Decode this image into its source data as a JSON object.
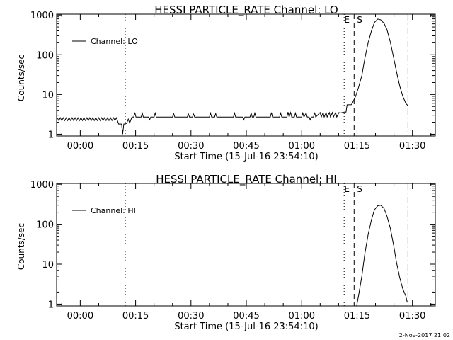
{
  "chart_data": [
    {
      "type": "line",
      "title": "HESSI PARTICLE_RATE Channel: LO",
      "xlabel": "Start Time (15-Jul-16 23:54:10)",
      "ylabel": "Counts/sec",
      "y_scale": "log",
      "ylim": [
        0.9,
        1050
      ],
      "y_ticks": [
        1,
        10,
        100,
        1000
      ],
      "y_tick_labels": [
        "1",
        "10",
        "100",
        "1000"
      ],
      "x_unit": "minutes after 00:00",
      "xlim": [
        -6.4,
        96.2
      ],
      "x_ticks": [
        0,
        15,
        30,
        45,
        60,
        75,
        90
      ],
      "x_tick_labels": [
        "00:00",
        "00:15",
        "00:30",
        "00:45",
        "01:00",
        "01:15",
        "01:30"
      ],
      "legend": {
        "label": "Channel: LO",
        "position": "top-left"
      },
      "vlines": [
        {
          "x": 12.2,
          "style": "dotted",
          "label": ""
        },
        {
          "x": 71.5,
          "style": "dotted",
          "label": "E"
        },
        {
          "x": 74.2,
          "style": "dashed",
          "label": "S"
        },
        {
          "x": 88.8,
          "style": "dashdot",
          "label": ""
        }
      ],
      "series": [
        {
          "name": "Channel: LO",
          "points": [
            [
              -6.2,
              2.6
            ],
            [
              -5.8,
              2.2
            ],
            [
              -5.4,
              2.6
            ],
            [
              -5.0,
              2.2
            ],
            [
              -4.6,
              2.6
            ],
            [
              -4.2,
              2.2
            ],
            [
              -3.8,
              2.6
            ],
            [
              -3.4,
              2.2
            ],
            [
              -3.0,
              2.6
            ],
            [
              -2.6,
              2.2
            ],
            [
              -2.2,
              2.6
            ],
            [
              -1.8,
              2.2
            ],
            [
              -1.4,
              2.6
            ],
            [
              -1.0,
              2.2
            ],
            [
              -0.6,
              2.6
            ],
            [
              -0.2,
              2.2
            ],
            [
              0.2,
              2.6
            ],
            [
              0.6,
              2.2
            ],
            [
              1.0,
              2.6
            ],
            [
              1.4,
              2.2
            ],
            [
              1.8,
              2.6
            ],
            [
              2.2,
              2.2
            ],
            [
              2.6,
              2.6
            ],
            [
              3.0,
              2.2
            ],
            [
              3.4,
              2.6
            ],
            [
              3.8,
              2.2
            ],
            [
              4.2,
              2.6
            ],
            [
              4.6,
              2.2
            ],
            [
              5.0,
              2.6
            ],
            [
              5.4,
              2.2
            ],
            [
              5.8,
              2.6
            ],
            [
              6.2,
              2.2
            ],
            [
              6.6,
              2.6
            ],
            [
              7.0,
              2.2
            ],
            [
              7.4,
              2.6
            ],
            [
              7.8,
              2.2
            ],
            [
              8.2,
              2.6
            ],
            [
              8.6,
              2.2
            ],
            [
              9.0,
              2.6
            ],
            [
              9.4,
              2.2
            ],
            [
              9.8,
              2.6
            ],
            [
              10.4,
              1.8
            ],
            [
              11.2,
              1.8
            ],
            [
              11.5,
              1.0
            ],
            [
              11.8,
              1.8
            ],
            [
              12.2,
              1.8
            ],
            [
              12.6,
              1.9
            ],
            [
              13.0,
              2.4
            ],
            [
              13.4,
              1.9
            ],
            [
              13.8,
              2.4
            ],
            [
              14.0,
              2.7
            ],
            [
              14.5,
              2.7
            ],
            [
              14.8,
              3.5
            ],
            [
              15.1,
              2.7
            ],
            [
              16.0,
              2.7
            ],
            [
              16.5,
              2.7
            ],
            [
              16.8,
              3.4
            ],
            [
              17.1,
              2.7
            ],
            [
              18.5,
              2.7
            ],
            [
              18.8,
              2.3
            ],
            [
              19.1,
              2.7
            ],
            [
              20.0,
              2.7
            ],
            [
              20.3,
              3.4
            ],
            [
              20.6,
              2.7
            ],
            [
              23.0,
              2.7
            ],
            [
              25.0,
              2.7
            ],
            [
              25.3,
              3.3
            ],
            [
              25.6,
              2.7
            ],
            [
              29.0,
              2.7
            ],
            [
              29.3,
              3.2
            ],
            [
              29.6,
              2.7
            ],
            [
              30.4,
              2.7
            ],
            [
              30.7,
              3.2
            ],
            [
              31.0,
              2.7
            ],
            [
              34.0,
              2.7
            ],
            [
              35.0,
              2.7
            ],
            [
              35.3,
              3.4
            ],
            [
              35.6,
              2.7
            ],
            [
              36.4,
              2.7
            ],
            [
              36.7,
              3.3
            ],
            [
              37.0,
              2.7
            ],
            [
              41.0,
              2.7
            ],
            [
              41.5,
              2.7
            ],
            [
              41.8,
              3.4
            ],
            [
              42.1,
              2.7
            ],
            [
              44.0,
              2.7
            ],
            [
              44.3,
              2.3
            ],
            [
              44.6,
              2.7
            ],
            [
              46.0,
              2.7
            ],
            [
              46.3,
              3.4
            ],
            [
              46.6,
              2.7
            ],
            [
              47.0,
              2.7
            ],
            [
              47.3,
              3.4
            ],
            [
              47.6,
              2.7
            ],
            [
              51.0,
              2.7
            ],
            [
              51.5,
              2.7
            ],
            [
              51.8,
              3.5
            ],
            [
              52.1,
              2.7
            ],
            [
              54.0,
              2.7
            ],
            [
              54.3,
              3.4
            ],
            [
              54.6,
              2.7
            ],
            [
              56.0,
              2.7
            ],
            [
              56.3,
              3.6
            ],
            [
              56.6,
              2.7
            ],
            [
              57.0,
              3.5
            ],
            [
              57.3,
              2.7
            ],
            [
              58.0,
              2.7
            ],
            [
              58.3,
              3.4
            ],
            [
              58.6,
              2.7
            ],
            [
              60.0,
              2.7
            ],
            [
              60.3,
              3.4
            ],
            [
              60.6,
              2.7
            ],
            [
              61.2,
              3.4
            ],
            [
              61.5,
              2.7
            ],
            [
              62.0,
              2.7
            ],
            [
              62.3,
              2.3
            ],
            [
              62.6,
              2.7
            ],
            [
              63.2,
              2.7
            ],
            [
              63.5,
              3.5
            ],
            [
              63.8,
              2.7
            ],
            [
              65.0,
              3.5
            ],
            [
              65.3,
              2.7
            ],
            [
              65.8,
              3.5
            ],
            [
              66.1,
              2.7
            ],
            [
              66.6,
              3.5
            ],
            [
              66.9,
              2.7
            ],
            [
              67.5,
              3.5
            ],
            [
              67.8,
              2.7
            ],
            [
              68.3,
              3.5
            ],
            [
              68.6,
              2.7
            ],
            [
              69.2,
              3.5
            ],
            [
              69.5,
              2.7
            ],
            [
              70.1,
              3.5
            ],
            [
              70.4,
              3.4
            ],
            [
              71.5,
              3.6
            ],
            [
              72.0,
              3.6
            ],
            [
              72.3,
              5.5
            ],
            [
              73.4,
              5.5
            ],
            [
              73.7,
              6.0
            ],
            [
              74.6,
              9.0
            ],
            [
              75.4,
              15
            ],
            [
              76.3,
              30
            ],
            [
              77.1,
              80
            ],
            [
              78.0,
              200
            ],
            [
              78.9,
              400
            ],
            [
              79.7,
              650
            ],
            [
              80.6,
              790
            ],
            [
              81.4,
              760
            ],
            [
              82.3,
              620
            ],
            [
              83.1,
              430
            ],
            [
              84.0,
              210
            ],
            [
              84.9,
              85
            ],
            [
              85.7,
              37
            ],
            [
              86.6,
              16
            ],
            [
              87.4,
              9
            ],
            [
              88.2,
              6
            ],
            [
              88.8,
              5.2
            ]
          ]
        }
      ]
    },
    {
      "type": "line",
      "title": "HESSI PARTICLE_RATE Channel: HI",
      "xlabel": "Start Time (15-Jul-16 23:54:10)",
      "ylabel": "Counts/sec",
      "y_scale": "log",
      "ylim": [
        0.9,
        1050
      ],
      "y_ticks": [
        1,
        10,
        100,
        1000
      ],
      "y_tick_labels": [
        "1",
        "10",
        "100",
        "1000"
      ],
      "x_unit": "minutes after 00:00",
      "xlim": [
        -6.4,
        96.2
      ],
      "x_ticks": [
        0,
        15,
        30,
        45,
        60,
        75,
        90
      ],
      "x_tick_labels": [
        "00:00",
        "00:15",
        "00:30",
        "00:45",
        "01:00",
        "01:15",
        "01:30"
      ],
      "legend": {
        "label": "Channel: HI",
        "position": "top-left"
      },
      "vlines": [
        {
          "x": 12.2,
          "style": "dotted",
          "label": ""
        },
        {
          "x": 71.5,
          "style": "dotted",
          "label": "E"
        },
        {
          "x": 74.2,
          "style": "dashed",
          "label": "S"
        },
        {
          "x": 88.8,
          "style": "dashdot",
          "label": ""
        }
      ],
      "series": [
        {
          "name": "Channel: HI",
          "points": [
            [
              74.9,
              0.9
            ],
            [
              75.4,
              1.6
            ],
            [
              76.3,
              5
            ],
            [
              77.1,
              18
            ],
            [
              78.0,
              55
            ],
            [
              78.9,
              130
            ],
            [
              79.7,
              230
            ],
            [
              80.6,
              290
            ],
            [
              81.4,
              300
            ],
            [
              82.3,
              250
            ],
            [
              83.1,
              160
            ],
            [
              84.0,
              80
            ],
            [
              84.9,
              30
            ],
            [
              85.7,
              11
            ],
            [
              86.6,
              4.5
            ],
            [
              87.4,
              2.4
            ],
            [
              88.2,
              1.6
            ],
            [
              88.6,
              1.1
            ]
          ]
        }
      ]
    }
  ],
  "footer_stamp": "2-Nov-2017 21:02"
}
